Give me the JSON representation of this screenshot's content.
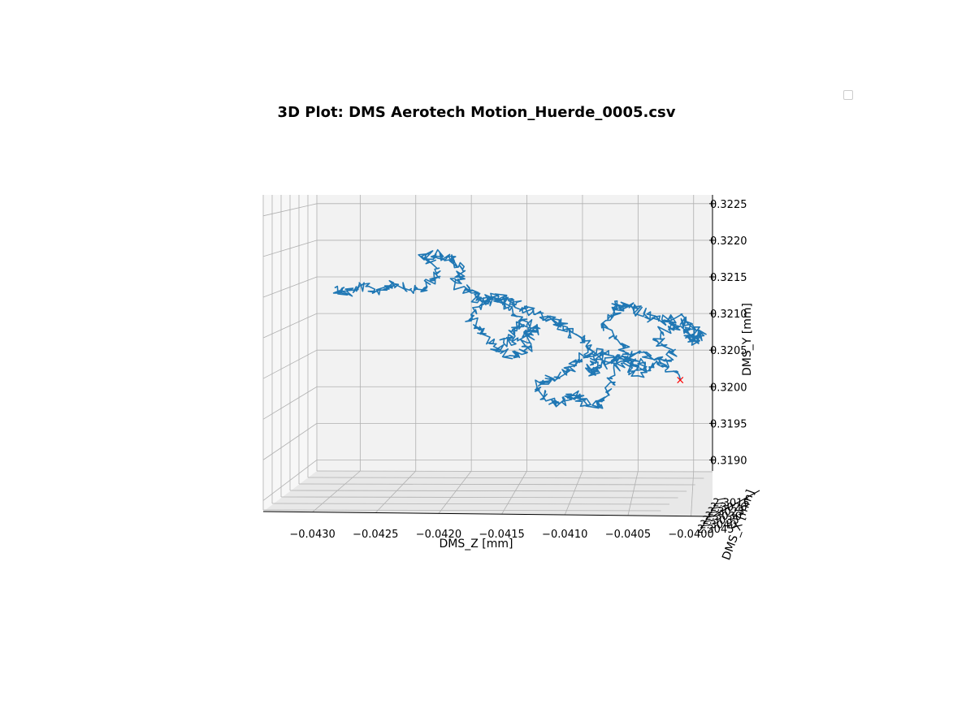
{
  "chart_data": {
    "type": "line",
    "projection": "3d",
    "title": "3D Plot: DMS Aerotech Motion_Huerde_0005.csv",
    "xlabel": "DMS_Z [mm]",
    "ylabel": "DMS_Y [mm]",
    "zlabel": "DMS_X [mm]",
    "x_ticks": [
      "−0.0430",
      "−0.0425",
      "−0.0420",
      "−0.0415",
      "−0.0410",
      "−0.0405",
      "−0.0400"
    ],
    "y_ticks": [
      "0.3190",
      "0.3195",
      "0.3200",
      "0.3205",
      "0.3210",
      "0.3215",
      "0.3220",
      "0.3225"
    ],
    "depth_ticks": [
      "2.3015",
      "2.3020",
      "2.3025",
      "2.3030",
      "2.3035",
      "2.3040",
      "2.3045"
    ],
    "xlim": [
      -0.04339,
      -0.03983
    ],
    "ylim": [
      0.31885,
      0.32262
    ],
    "grid": true,
    "legend": "top-right (empty)",
    "series": [
      {
        "color": "#1f77b4",
        "x": [
          -0.04323,
          -0.04313,
          -0.043,
          -0.04285,
          -0.0427,
          -0.04255,
          -0.0424,
          -0.04228,
          -0.04245,
          -0.04232,
          -0.04218,
          -0.04208,
          -0.04214,
          -0.042,
          -0.0419,
          -0.04176,
          -0.04165,
          -0.0415,
          -0.04163,
          -0.0417,
          -0.04154,
          -0.04142,
          -0.04148,
          -0.04152,
          -0.04166,
          -0.0418,
          -0.04192,
          -0.042,
          -0.04188,
          -0.04175,
          -0.0416,
          -0.04145,
          -0.0413,
          -0.0412,
          -0.0411,
          -0.041,
          -0.04092,
          -0.04105,
          -0.04115,
          -0.04128,
          -0.04138,
          -0.04135,
          -0.04122,
          -0.0411,
          -0.041,
          -0.04085,
          -0.04078,
          -0.0407,
          -0.04082,
          -0.04088,
          -0.04094,
          -0.04085,
          -0.04072,
          -0.0406,
          -0.04045,
          -0.0406,
          -0.0407,
          -0.04082,
          -0.0407,
          -0.04068,
          -0.04058,
          -0.04045,
          -0.0403,
          -0.04015,
          -0.04002,
          -0.04006,
          -0.03998,
          -0.03993,
          -0.04008,
          -0.0402,
          -0.04035,
          -0.04018,
          -0.04032,
          -0.0405,
          -0.04065,
          -0.04048,
          -0.0403,
          -0.04012
        ],
        "y": [
          0.32135,
          0.32128,
          0.32138,
          0.3213,
          0.32142,
          0.32133,
          0.32135,
          0.32158,
          0.32178,
          0.32182,
          0.32175,
          0.3216,
          0.32142,
          0.32128,
          0.32115,
          0.32125,
          0.32105,
          0.32085,
          0.32078,
          0.32058,
          0.32068,
          0.32082,
          0.3207,
          0.3205,
          0.32042,
          0.32055,
          0.32072,
          0.3209,
          0.32115,
          0.3212,
          0.32112,
          0.32102,
          0.32092,
          0.32085,
          0.32075,
          0.32062,
          0.32045,
          0.32035,
          0.3202,
          0.3201,
          0.32005,
          0.31985,
          0.31975,
          0.3199,
          0.3198,
          0.31972,
          0.31992,
          0.3203,
          0.32048,
          0.32032,
          0.3202,
          0.32025,
          0.32038,
          0.32035,
          0.32025,
          0.32045,
          0.32065,
          0.32085,
          0.321,
          0.32112,
          0.32108,
          0.321,
          0.3209,
          0.32095,
          0.32082,
          0.32068,
          0.32062,
          0.32074,
          0.32078,
          0.32085,
          0.32065,
          0.32048,
          0.3203,
          0.32015,
          0.32035,
          0.32048,
          0.32038,
          0.3201
        ]
      }
    ],
    "end_marker": {
      "symbol": "×",
      "color": "#ff0000",
      "x": -0.04012,
      "y": 0.3201
    }
  }
}
